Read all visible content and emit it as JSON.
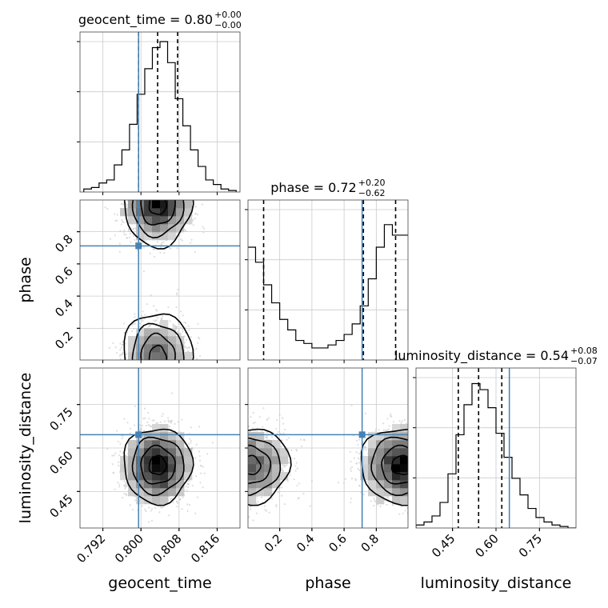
{
  "chart_data": {
    "type": "corner",
    "parameters": [
      "geocent_time",
      "phase",
      "luminosity_distance"
    ],
    "titles": {
      "geocent_time": {
        "name": "geocent_time",
        "value": "0.80",
        "plus": "+0.00",
        "minus": "−0.00"
      },
      "phase": {
        "name": "phase",
        "value": "0.72",
        "plus": "+0.20",
        "minus": "−0.62"
      },
      "luminosity_distance": {
        "name": "luminosity_distance",
        "value": "0.54",
        "plus": "+0.08",
        "minus": "−0.07"
      }
    },
    "axis_labels": {
      "geocent_time": "geocent_time",
      "phase": "phase",
      "luminosity_distance": "luminosity_distance"
    },
    "ranges": {
      "geocent_time": [
        0.7872,
        0.8208
      ],
      "phase": [
        0.003,
        0.997
      ],
      "luminosity_distance": [
        0.324,
        0.876
      ]
    },
    "ticks": {
      "geocent_time": [
        {
          "v": 0.792,
          "label": "0.792"
        },
        {
          "v": 0.8,
          "label": "0.800"
        },
        {
          "v": 0.808,
          "label": "0.808"
        },
        {
          "v": 0.816,
          "label": "0.816"
        }
      ],
      "phase_y": [
        {
          "v": 0.2,
          "label": "0.2"
        },
        {
          "v": 0.4,
          "label": "0.4"
        },
        {
          "v": 0.6,
          "label": "0.6"
        },
        {
          "v": 0.8,
          "label": "0.8"
        }
      ],
      "phase_x": [
        {
          "v": 0.2,
          "label": "0.2"
        },
        {
          "v": 0.4,
          "label": "0.4"
        },
        {
          "v": 0.6,
          "label": "0.6"
        },
        {
          "v": 0.8,
          "label": "0.8"
        }
      ],
      "luminosity_distance": [
        {
          "v": 0.45,
          "label": "0.45"
        },
        {
          "v": 0.6,
          "label": "0.60"
        },
        {
          "v": 0.75,
          "label": "0.75"
        }
      ]
    },
    "truths": {
      "geocent_time": 0.7995,
      "phase": 0.712,
      "luminosity_distance": 0.646
    },
    "quantiles": {
      "geocent_time": [
        0.7995,
        0.8035,
        0.8077
      ],
      "phase": [
        0.1,
        0.72,
        0.92
      ],
      "luminosity_distance": [
        0.47,
        0.54,
        0.62
      ]
    },
    "histograms": {
      "geocent_time": {
        "bins": [
          0.788,
          0.82
        ],
        "counts": [
          0.02,
          0.03,
          0.06,
          0.08,
          0.18,
          0.28,
          0.45,
          0.65,
          0.82,
          0.96,
          1.0,
          0.86,
          0.62,
          0.44,
          0.28,
          0.17,
          0.08,
          0.05,
          0.02,
          0.01
        ]
      },
      "phase": {
        "bins": [
          0.0,
          1.0
        ],
        "counts": [
          0.75,
          0.65,
          0.5,
          0.38,
          0.27,
          0.2,
          0.13,
          0.11,
          0.08,
          0.08,
          0.1,
          0.13,
          0.17,
          0.24,
          0.36,
          0.54,
          0.75,
          0.9,
          0.83,
          0.83
        ]
      },
      "luminosity_distance": {
        "bins": [
          0.324,
          0.876
        ],
        "counts": [
          0.02,
          0.04,
          0.08,
          0.17,
          0.36,
          0.62,
          0.82,
          0.96,
          0.92,
          0.8,
          0.63,
          0.47,
          0.33,
          0.22,
          0.13,
          0.07,
          0.04,
          0.02,
          0.01,
          0.0
        ]
      }
    },
    "grid": true,
    "colors": {
      "truth": "#4682b4",
      "hist": "#000000",
      "density": "#000000",
      "points": "#c8c8c8",
      "grid": "#cccccc"
    }
  }
}
